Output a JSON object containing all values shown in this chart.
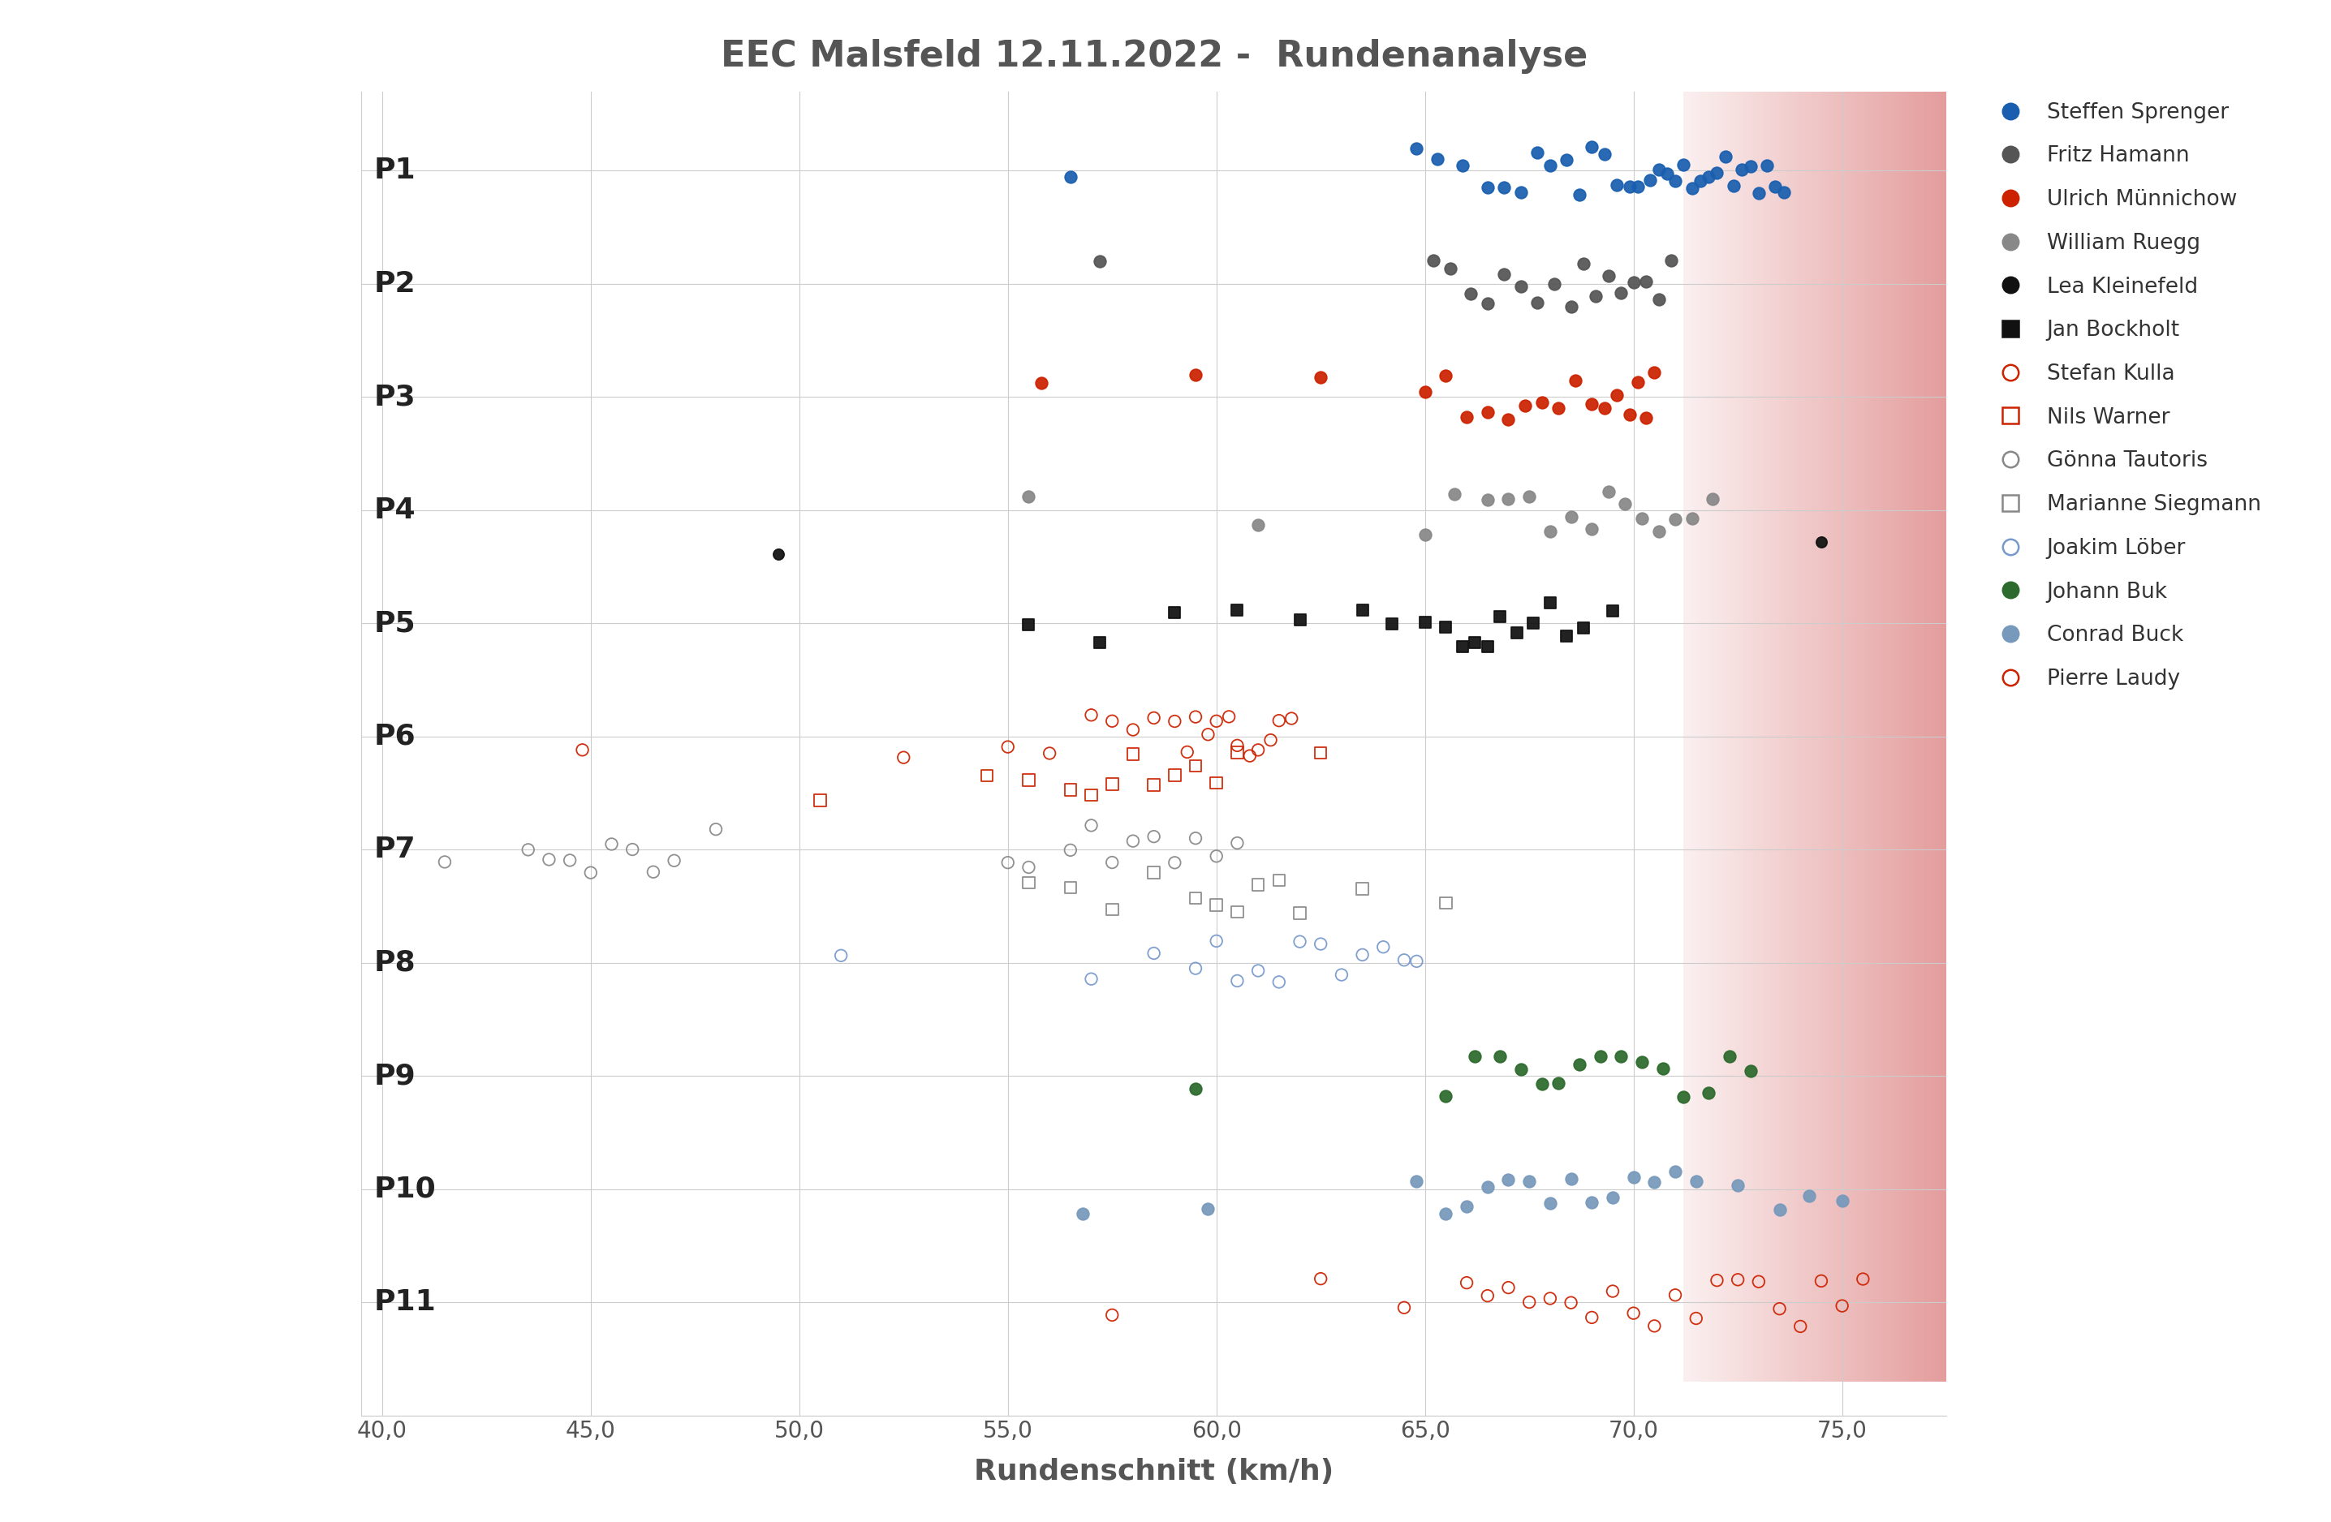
{
  "title": "EEC Malsfeld 12.11.2022 -  Rundenanalyse",
  "xlabel": "Rundenschnitt (km/h)",
  "xlim": [
    39.5,
    77.5
  ],
  "xticks": [
    40.0,
    45.0,
    50.0,
    55.0,
    60.0,
    65.0,
    70.0,
    75.0
  ],
  "ylim": [
    0.3,
    11.7
  ],
  "background_color": "#ffffff",
  "grid_color": "#cccccc",
  "red_zone_start": 71.2,
  "red_zone_end": 77.5,
  "title_color": "#555555",
  "axis_label_color": "#555555",
  "players": [
    {
      "name": "Steffen Sprenger",
      "y": 11,
      "marker": "o",
      "color": "#1a5faf",
      "facecolor": "#1a5faf",
      "size": 110,
      "data": [
        56.5,
        64.8,
        65.3,
        65.9,
        66.5,
        66.9,
        67.3,
        67.7,
        68.0,
        68.4,
        68.7,
        69.0,
        69.3,
        69.6,
        69.9,
        70.1,
        70.4,
        70.6,
        70.8,
        71.0,
        71.2,
        71.4,
        71.6,
        71.8,
        72.0,
        72.2,
        72.4,
        72.6,
        72.8,
        73.0,
        73.2,
        73.4,
        73.6
      ]
    },
    {
      "name": "Fritz Hamann",
      "y": 10,
      "marker": "o",
      "color": "#555555",
      "facecolor": "#555555",
      "size": 110,
      "data": [
        57.2,
        65.2,
        65.6,
        66.1,
        66.5,
        66.9,
        67.3,
        67.7,
        68.1,
        68.5,
        68.8,
        69.1,
        69.4,
        69.7,
        70.0,
        70.3,
        70.6,
        70.9
      ]
    },
    {
      "name": "Ulrich Münnichow",
      "y": 9,
      "marker": "o",
      "color": "#cc2200",
      "facecolor": "#cc2200",
      "size": 110,
      "data": [
        55.8,
        59.5,
        62.5,
        65.0,
        65.5,
        66.0,
        66.5,
        67.0,
        67.4,
        67.8,
        68.2,
        68.6,
        69.0,
        69.3,
        69.6,
        69.9,
        70.1,
        70.3,
        70.5
      ]
    },
    {
      "name": "William Ruegg",
      "y": 8,
      "marker": "o",
      "color": "#888888",
      "facecolor": "#888888",
      "size": 110,
      "data": [
        55.5,
        61.0,
        65.0,
        65.7,
        66.5,
        67.0,
        67.5,
        68.0,
        68.5,
        69.0,
        69.4,
        69.8,
        70.2,
        70.6,
        71.0,
        71.4,
        71.9
      ]
    },
    {
      "name": "Lea Kleinefeld",
      "y": 7.55,
      "marker": "o",
      "color": "#111111",
      "facecolor": "#111111",
      "size": 90,
      "data": [
        49.5,
        74.5
      ]
    },
    {
      "name": "Jan Bockholt",
      "y": 7,
      "marker": "s",
      "color": "#111111",
      "facecolor": "#111111",
      "size": 110,
      "data": [
        55.5,
        57.2,
        59.0,
        60.5,
        62.0,
        63.5,
        64.2,
        65.0,
        65.5,
        65.9,
        66.2,
        66.5,
        66.8,
        67.2,
        67.6,
        68.0,
        68.4,
        68.8,
        69.5
      ]
    },
    {
      "name": "Stefan Kulla",
      "y": 6,
      "marker": "o",
      "color": "#cc2200",
      "facecolor": "none",
      "size": 110,
      "data": [
        44.8,
        52.5,
        55.0,
        56.0,
        57.0,
        57.5,
        58.0,
        58.5,
        59.0,
        59.3,
        59.5,
        59.8,
        60.0,
        60.3,
        60.5,
        60.8,
        61.0,
        61.3,
        61.5,
        61.8
      ]
    },
    {
      "name": "Nils Warner",
      "y": 5.65,
      "marker": "s",
      "color": "#cc2200",
      "facecolor": "none",
      "size": 110,
      "data": [
        50.5,
        54.5,
        55.5,
        56.5,
        57.0,
        57.5,
        58.0,
        58.5,
        59.0,
        59.5,
        60.0,
        60.5,
        62.5
      ]
    },
    {
      "name": "Gönna Tautoris",
      "y": 5,
      "marker": "o",
      "color": "#888888",
      "facecolor": "none",
      "size": 110,
      "data": [
        41.5,
        43.5,
        44.0,
        44.5,
        45.0,
        45.5,
        46.0,
        46.5,
        47.0,
        48.0,
        55.0,
        55.5,
        56.5,
        57.0,
        57.5,
        58.0,
        58.5,
        59.0,
        59.5,
        60.0,
        60.5
      ]
    },
    {
      "name": "Marianne Siegmann",
      "y": 4.65,
      "marker": "s",
      "color": "#888888",
      "facecolor": "none",
      "size": 110,
      "data": [
        55.5,
        56.5,
        57.5,
        58.5,
        59.5,
        60.0,
        60.5,
        61.0,
        61.5,
        62.0,
        63.5,
        65.5
      ]
    },
    {
      "name": "Joakim Löber",
      "y": 4,
      "marker": "o",
      "color": "#7799cc",
      "facecolor": "none",
      "size": 110,
      "data": [
        51.0,
        57.0,
        58.5,
        59.5,
        60.0,
        60.5,
        61.0,
        61.5,
        62.0,
        62.5,
        63.0,
        63.5,
        64.0,
        64.5,
        64.8
      ]
    },
    {
      "name": "Johann Buk",
      "y": 3,
      "marker": "o",
      "color": "#2d6a2d",
      "facecolor": "#2d6a2d",
      "size": 110,
      "data": [
        59.5,
        65.5,
        66.2,
        66.8,
        67.3,
        67.8,
        68.2,
        68.7,
        69.2,
        69.7,
        70.2,
        70.7,
        71.2,
        71.8,
        72.3,
        72.8
      ]
    },
    {
      "name": "Conrad Buck",
      "y": 2,
      "marker": "o",
      "color": "#7799bb",
      "facecolor": "#7799bb",
      "size": 110,
      "data": [
        56.8,
        59.8,
        64.8,
        65.5,
        66.0,
        66.5,
        67.0,
        67.5,
        68.0,
        68.5,
        69.0,
        69.5,
        70.0,
        70.5,
        71.0,
        71.5,
        72.5,
        73.5,
        74.2,
        75.0
      ]
    },
    {
      "name": "Pierre Laudy",
      "y": 1,
      "marker": "o",
      "color": "#cc2200",
      "facecolor": "none",
      "size": 110,
      "data": [
        57.5,
        62.5,
        64.5,
        66.0,
        66.5,
        67.0,
        67.5,
        68.0,
        68.5,
        69.0,
        69.5,
        70.0,
        70.5,
        71.0,
        71.5,
        72.0,
        72.5,
        73.0,
        73.5,
        74.0,
        74.5,
        75.0,
        75.5
      ]
    }
  ],
  "p_labels": [
    {
      "label": "P1",
      "y": 11
    },
    {
      "label": "P2",
      "y": 10
    },
    {
      "label": "P3",
      "y": 9
    },
    {
      "label": "P4",
      "y": 8
    },
    {
      "label": "P5",
      "y": 7
    },
    {
      "label": "P6",
      "y": 6
    },
    {
      "label": "P7",
      "y": 5
    },
    {
      "label": "P8",
      "y": 4
    },
    {
      "label": "P9",
      "y": 3
    },
    {
      "label": "P10",
      "y": 2
    },
    {
      "label": "P11",
      "y": 1
    }
  ],
  "legend_entries": [
    {
      "name": "Steffen Sprenger",
      "marker": "o",
      "color": "#1a5faf",
      "filled": true
    },
    {
      "name": "Fritz Hamann",
      "marker": "o",
      "color": "#555555",
      "filled": true
    },
    {
      "name": "Ulrich Münnichow",
      "marker": "o",
      "color": "#cc2200",
      "filled": true
    },
    {
      "name": "William Ruegg",
      "marker": "o",
      "color": "#888888",
      "filled": true
    },
    {
      "name": "Lea Kleinefeld",
      "marker": "o",
      "color": "#111111",
      "filled": true
    },
    {
      "name": "Jan Bockholt",
      "marker": "s",
      "color": "#111111",
      "filled": true
    },
    {
      "name": "Stefan Kulla",
      "marker": "o",
      "color": "#cc2200",
      "filled": false
    },
    {
      "name": "Nils Warner",
      "marker": "s",
      "color": "#cc2200",
      "filled": false
    },
    {
      "name": "Gönna Tautoris",
      "marker": "o",
      "color": "#888888",
      "filled": false
    },
    {
      "name": "Marianne Siegmann",
      "marker": "s",
      "color": "#888888",
      "filled": false
    },
    {
      "name": "Joakim Löber",
      "marker": "o",
      "color": "#7799cc",
      "filled": false
    },
    {
      "name": "Johann Buk",
      "marker": "o",
      "color": "#2d6a2d",
      "filled": true
    },
    {
      "name": "Conrad Buck",
      "marker": "o",
      "color": "#7799bb",
      "filled": true
    },
    {
      "name": "Pierre Laudy",
      "marker": "o",
      "color": "#cc2200",
      "filled": false
    }
  ]
}
